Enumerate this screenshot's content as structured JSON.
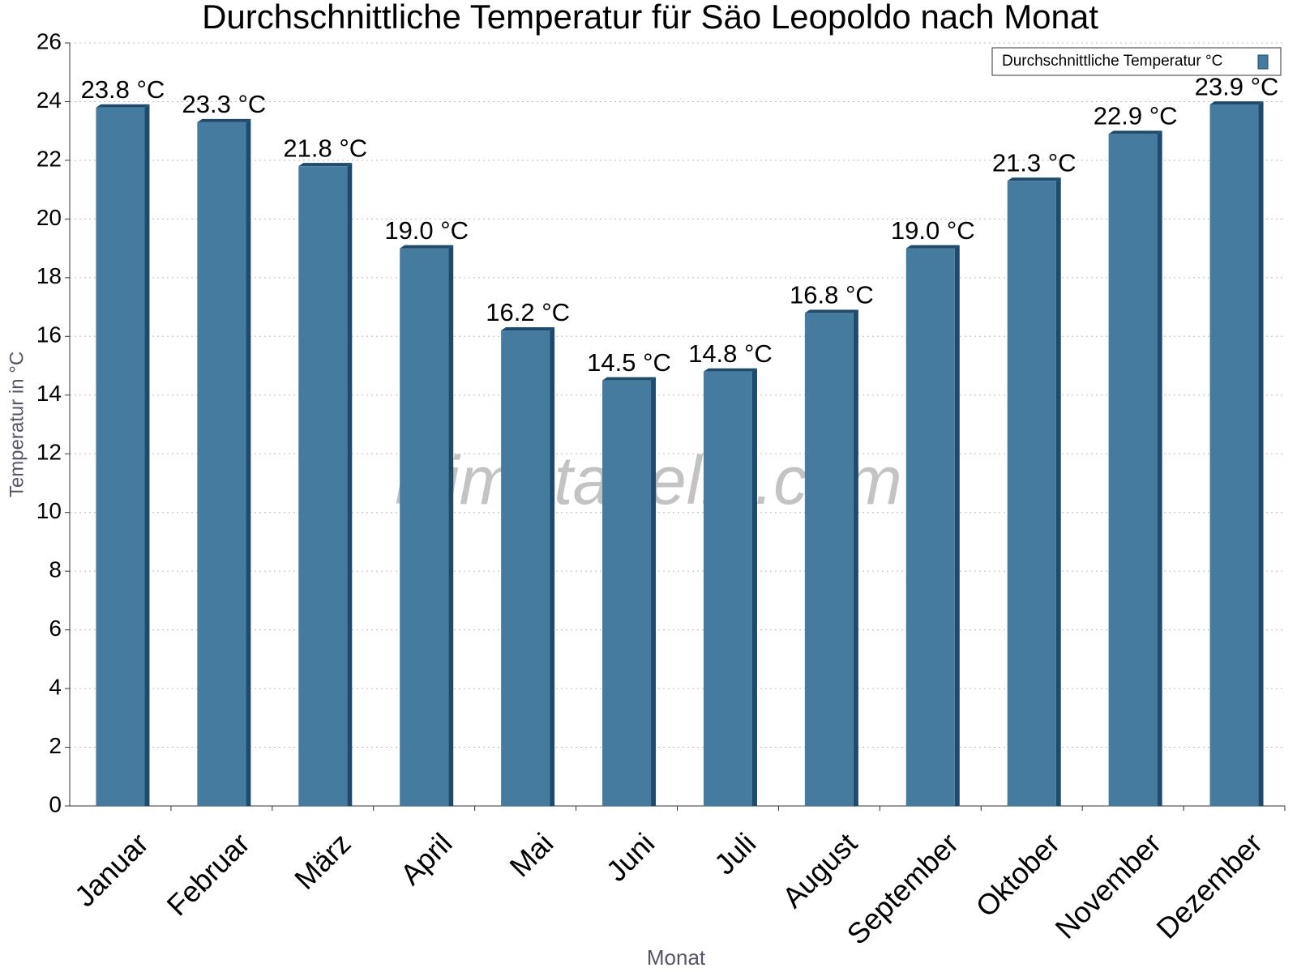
{
  "chart_data": {
    "type": "bar",
    "title": "Durchschnittliche Temperatur für Säo Leopoldo nach Monat",
    "x_label": "Monat",
    "y_label": "Temperatur in °C",
    "watermark": "klimatabelle.com",
    "categories": [
      "Januar",
      "Februar",
      "März",
      "April",
      "Mai",
      "Juni",
      "Juli",
      "August",
      "September",
      "Oktober",
      "November",
      "Dezember"
    ],
    "series": [
      {
        "name": "Durchschnittliche Temperatur °C",
        "color": "#467ba0",
        "values": [
          23.8,
          23.3,
          21.8,
          19.0,
          16.2,
          14.5,
          14.8,
          16.8,
          19.0,
          21.3,
          22.9,
          23.9
        ],
        "value_labels": [
          "23.8 °C",
          "23.3 °C",
          "21.8 °C",
          "19.0 °C",
          "16.2 °C",
          "14.5 °C",
          "14.8 °C",
          "16.8 °C",
          "19.0 °C",
          "21.3 °C",
          "22.9 °C",
          "23.9 °C"
        ]
      }
    ],
    "ylim": [
      0,
      26
    ],
    "yticks": [
      0,
      2,
      4,
      6,
      8,
      10,
      12,
      14,
      16,
      18,
      20,
      22,
      24,
      26
    ],
    "grid": true,
    "legend": "top-right"
  }
}
